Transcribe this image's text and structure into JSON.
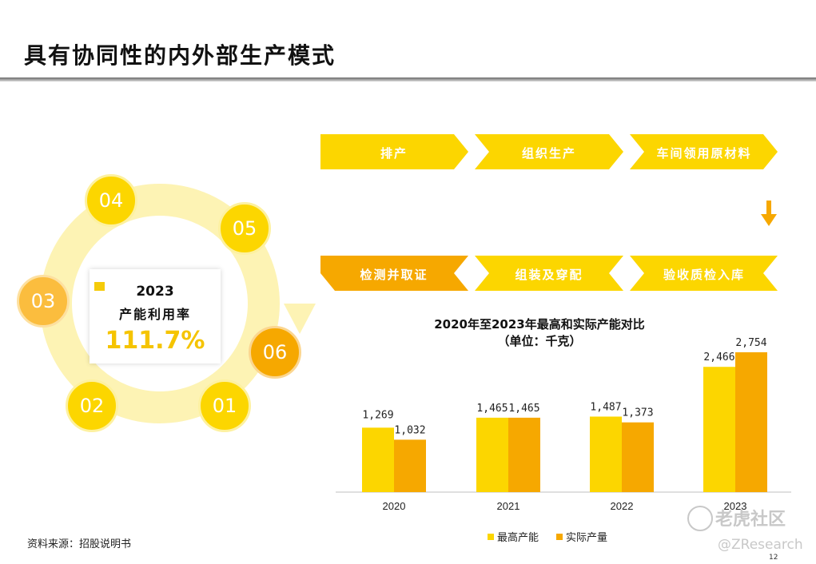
{
  "page": {
    "title": "具有协同性的内外部生产模式",
    "source": "资料来源：招股说明书",
    "page_number": "12",
    "watermark_main": "老虎社区",
    "watermark_handle": "@ZResearch"
  },
  "cycle": {
    "year": "2023",
    "label": "产能利用率",
    "value": "111.7%",
    "nodes": [
      "01",
      "02",
      "03",
      "04",
      "05",
      "06"
    ]
  },
  "flow": {
    "top": [
      "排产",
      "组织生产",
      "车间领用原材料"
    ],
    "bottom": [
      "验收质检入库",
      "组装及穿配",
      "检测并取证"
    ]
  },
  "colors": {
    "yellow": "#fcd600",
    "orange": "#f6a800",
    "pale": "#fdf3b4"
  },
  "chart_data": {
    "type": "bar",
    "title": "2020年至2023年最高和实际产能对比",
    "subtitle": "（单位：千克）",
    "categories": [
      "2020",
      "2021",
      "2022",
      "2023"
    ],
    "series": [
      {
        "name": "最高产能",
        "values": [
          1269,
          1465,
          1487,
          2466
        ],
        "labels": [
          "1,269",
          "1,465",
          "1,487",
          "2,466"
        ],
        "color": "#fcd600"
      },
      {
        "name": "实际产量",
        "values": [
          1032,
          1465,
          1373,
          2754
        ],
        "labels": [
          "1,032",
          "1,465",
          "1,373",
          "2,754"
        ],
        "color": "#f6a800"
      }
    ],
    "ylim": [
      0,
      2800
    ],
    "xlabel": "",
    "ylabel": "",
    "legend": "bottom"
  }
}
